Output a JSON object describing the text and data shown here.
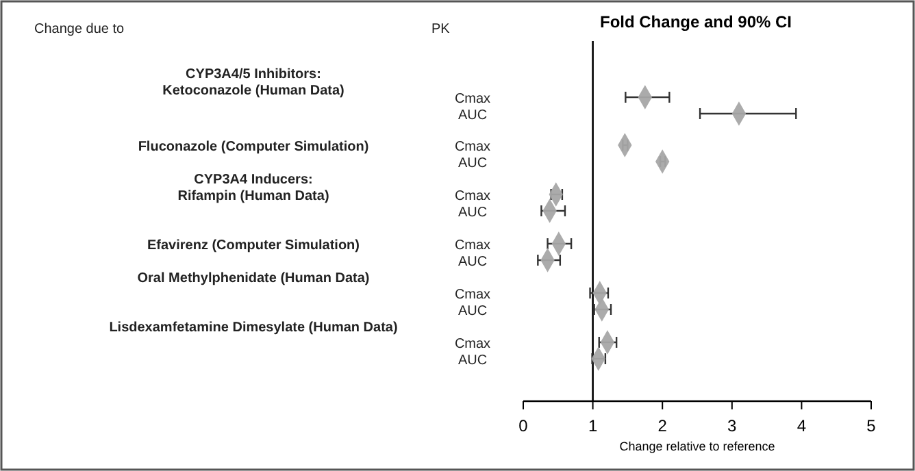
{
  "chart_data": {
    "type": "scatter",
    "orientation": "horizontal",
    "title": "Fold Change and 90% CI",
    "xlabel": "Change relative to reference",
    "categories": [
      "Cmax",
      "AUC",
      "Cmax",
      "AUC",
      "Cmax",
      "AUC",
      "Cmax",
      "AUC",
      "Cmax",
      "AUC",
      "Cmax",
      "AUC"
    ],
    "values": [
      1.75,
      3.1,
      1.46,
      2.0,
      0.47,
      0.38,
      0.51,
      0.35,
      1.1,
      1.13,
      1.21,
      1.08
    ],
    "errors": [
      [
        1.47,
        2.1
      ],
      [
        2.54,
        3.92
      ],
      [
        1.43,
        1.5
      ],
      [
        1.97,
        2.04
      ],
      [
        0.4,
        0.56
      ],
      [
        0.26,
        0.6
      ],
      [
        0.35,
        0.69
      ],
      [
        0.21,
        0.53
      ],
      [
        0.96,
        1.22
      ],
      [
        1.02,
        1.26
      ],
      [
        1.09,
        1.34
      ],
      [
        0.99,
        1.18
      ]
    ],
    "color": "#a6a6a6",
    "marker": "diamond",
    "xlim": [
      0,
      5
    ],
    "xticks": [
      0,
      1,
      2,
      3,
      4,
      5
    ],
    "ref_lines": [
      {
        "axis": "x",
        "value": 1
      }
    ],
    "annotations": [
      "Change due to",
      "PK",
      "CYP3A4/5 Inhibitors:",
      "Ketoconazole (Human Data)",
      "Fluconazole (Computer Simulation)",
      "CYP3A4 Inducers:",
      "Rifampin (Human Data)",
      "Efavirenz (Computer Simulation)",
      "Oral Methylphenidate (Human Data)",
      "Lisdexamfetamine Dimesylate (Human Data)"
    ]
  }
}
